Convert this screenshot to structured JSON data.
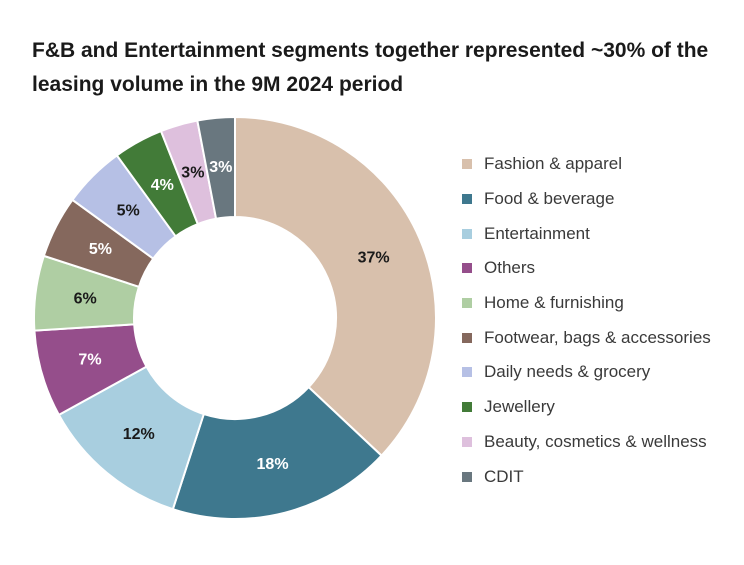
{
  "chart_data": {
    "type": "pie",
    "title": "F&B and Entertainment segments together represented ~30% of the leasing volume in the 9M 2024 period",
    "legend_position": "right",
    "slices": [
      {
        "label": "Fashion & apparel",
        "value": 37,
        "display": "37%",
        "color": "#d8c0ac",
        "label_color": "#1a1a1a"
      },
      {
        "label": "Food & beverage",
        "value": 18,
        "display": "18%",
        "color": "#3e788e",
        "label_color": "#ffffff"
      },
      {
        "label": "Entertainment",
        "value": 12,
        "display": "12%",
        "color": "#a8cedf",
        "label_color": "#1a1a1a"
      },
      {
        "label": "Others",
        "value": 7,
        "display": "7%",
        "color": "#954e8b",
        "label_color": "#ffffff"
      },
      {
        "label": "Home & furnishing",
        "value": 6,
        "display": "6%",
        "color": "#afcea3",
        "label_color": "#1a1a1a"
      },
      {
        "label": "Footwear, bags & accessories",
        "value": 5,
        "display": "5%",
        "color": "#85685d",
        "label_color": "#ffffff"
      },
      {
        "label": "Daily needs & grocery",
        "value": 5,
        "display": "5%",
        "color": "#b6c0e5",
        "label_color": "#1a1a1a"
      },
      {
        "label": "Jewellery",
        "value": 4,
        "display": "4%",
        "color": "#427b38",
        "label_color": "#ffffff"
      },
      {
        "label": "Beauty, cosmetics & wellness",
        "value": 3,
        "display": "3%",
        "color": "#dec0dd",
        "label_color": "#1a1a1a"
      },
      {
        "label": "CDIT",
        "value": 3,
        "display": "3%",
        "color": "#69777f",
        "label_color": "#ffffff"
      }
    ]
  }
}
